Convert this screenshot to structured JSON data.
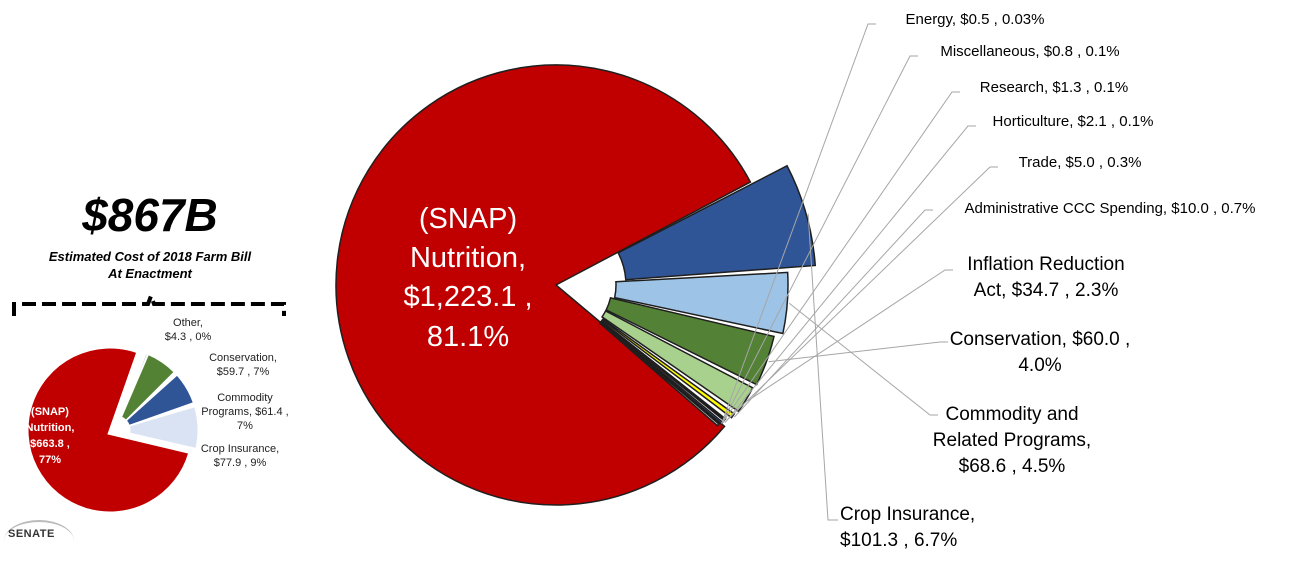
{
  "summary": {
    "total": "$867B",
    "subtitle_line1": "Estimated Cost of 2018 Farm Bill",
    "subtitle_line2": "At Enactment"
  },
  "logo": {
    "text": "SENATE"
  },
  "chart_data": [
    {
      "type": "pie",
      "slices": [
        {
          "label": "(SNAP) Nutrition",
          "value": 1223.1,
          "value_label": "$1,223.1",
          "percent": "81.1%",
          "color": "#c00000"
        },
        {
          "label": "Crop Insurance",
          "value": 101.3,
          "value_label": "$101.3",
          "percent": "6.7%",
          "color": "#2f5597"
        },
        {
          "label": "Commodity and Related Programs",
          "value": 68.6,
          "value_label": "$68.6",
          "percent": "4.5%",
          "color": "#9dc3e6"
        },
        {
          "label": "Conservation",
          "value": 60.0,
          "value_label": "$60.0",
          "percent": "4.0%",
          "color": "#538135"
        },
        {
          "label": "Inflation Reduction Act",
          "value": 34.7,
          "value_label": "$34.7",
          "percent": "2.3%",
          "color": "#a9d18e"
        },
        {
          "label": "Administrative CCC Spending",
          "value": 10.0,
          "value_label": "$10.0",
          "percent": "0.7%",
          "color": "#ffff00"
        },
        {
          "label": "Trade",
          "value": 5.0,
          "value_label": "$5.0",
          "percent": "0.3%",
          "color": "#1a1a1a"
        },
        {
          "label": "Horticulture",
          "value": 2.1,
          "value_label": "$2.1",
          "percent": "0.1%",
          "color": "#4472c4"
        },
        {
          "label": "Research",
          "value": 1.3,
          "value_label": "$1.3",
          "percent": "0.1%",
          "color": "#7f7f7f"
        },
        {
          "label": "Miscellaneous",
          "value": 0.8,
          "value_label": "$0.8",
          "percent": "0.1%",
          "color": "#a5a5a5"
        },
        {
          "label": "Energy",
          "value": 0.5,
          "value_label": "$0.5",
          "percent": "0.03%",
          "color": "#d9d9d9"
        }
      ]
    },
    {
      "type": "pie",
      "slices": [
        {
          "label": "(SNAP) Nutrition",
          "value": 663.8,
          "value_label": "$663.8",
          "percent": "77%",
          "color": "#c00000"
        },
        {
          "label": "Crop Insurance",
          "value": 77.9,
          "value_label": "$77.9",
          "percent": "9%",
          "color": "#dae3f3"
        },
        {
          "label": "Commodity Programs",
          "value": 61.4,
          "value_label": "$61.4",
          "percent": "7%",
          "color": "#2f5597"
        },
        {
          "label": "Conservation",
          "value": 59.7,
          "value_label": "$59.7",
          "percent": "7%",
          "color": "#548235"
        },
        {
          "label": "Other",
          "value": 4.3,
          "value_label": "$4.3",
          "percent": "0%",
          "color": "#9dc3e6"
        }
      ]
    }
  ]
}
